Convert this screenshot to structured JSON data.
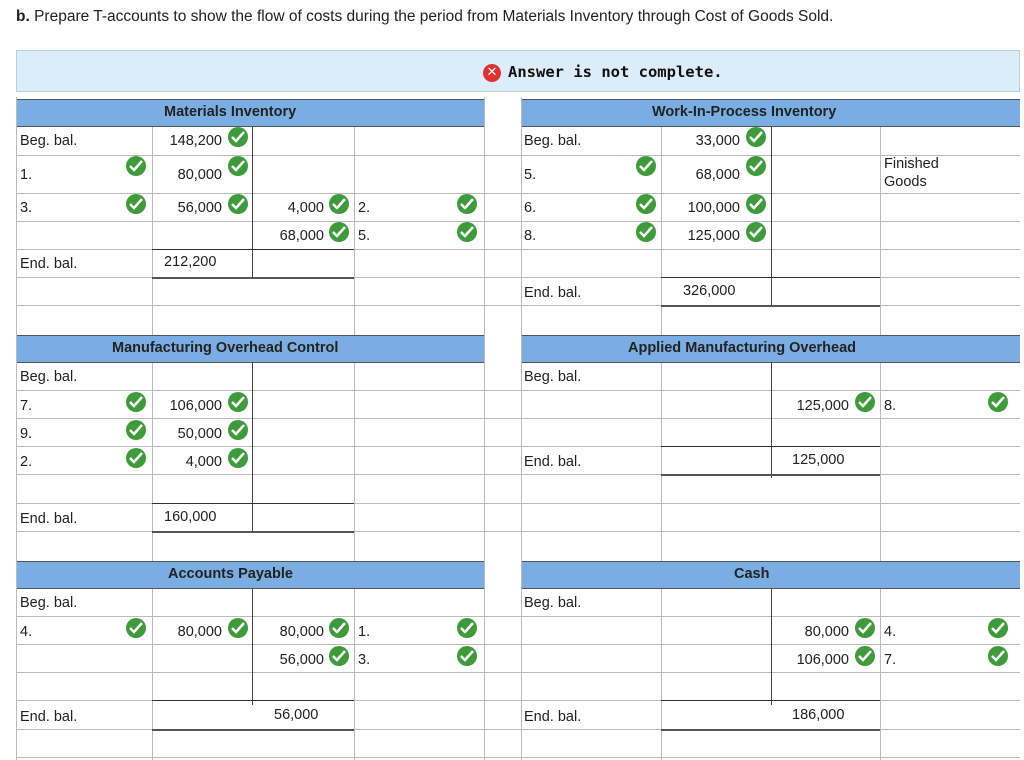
{
  "question": {
    "prefix": "b.",
    "text": "Prepare T-accounts to show the flow of costs during the period from Materials Inventory through Cost of Goods Sold."
  },
  "banner": {
    "icon": "x-circle-icon",
    "text": "Answer is not complete."
  },
  "labels": {
    "beg": "Beg. bal.",
    "end": "End. bal."
  },
  "accounts": {
    "materials": {
      "title": "Materials Inventory",
      "beg": "148,200",
      "debits": [
        {
          "ref": "1.",
          "amount": "80,000"
        },
        {
          "ref": "3.",
          "amount": "56,000"
        }
      ],
      "credits": [
        {
          "ref": "2.",
          "amount": "4,000"
        },
        {
          "ref": "5.",
          "amount": "68,000"
        }
      ],
      "end": "212,200"
    },
    "wip": {
      "title": "Work-In-Process Inventory",
      "beg": "33,000",
      "debits": [
        {
          "ref": "5.",
          "amount": "68,000"
        },
        {
          "ref": "6.",
          "amount": "100,000"
        },
        {
          "ref": "8.",
          "amount": "125,000"
        }
      ],
      "credit_account": "Finished Goods",
      "end": "326,000"
    },
    "moh": {
      "title": "Manufacturing Overhead Control",
      "debits": [
        {
          "ref": "7.",
          "amount": "106,000"
        },
        {
          "ref": "9.",
          "amount": "50,000"
        },
        {
          "ref": "2.",
          "amount": "4,000"
        }
      ],
      "end": "160,000"
    },
    "amoh": {
      "title": "Applied Manufacturing Overhead",
      "credits": [
        {
          "ref": "8.",
          "amount": "125,000"
        }
      ],
      "end": "125,000"
    },
    "ap": {
      "title": "Accounts Payable",
      "debits": [
        {
          "ref": "4.",
          "amount": "80,000"
        }
      ],
      "credits": [
        {
          "ref": "1.",
          "amount": "80,000"
        },
        {
          "ref": "3.",
          "amount": "56,000"
        }
      ],
      "end": "56,000"
    },
    "cash": {
      "title": "Cash",
      "credits": [
        {
          "ref": "4.",
          "amount": "80,000"
        },
        {
          "ref": "7.",
          "amount": "106,000"
        }
      ],
      "end": "186,000"
    }
  },
  "colors": {
    "header": "#7aaee3",
    "check": "#3e9a3a",
    "banner": "#dcecf9",
    "error": "#dd3333"
  }
}
